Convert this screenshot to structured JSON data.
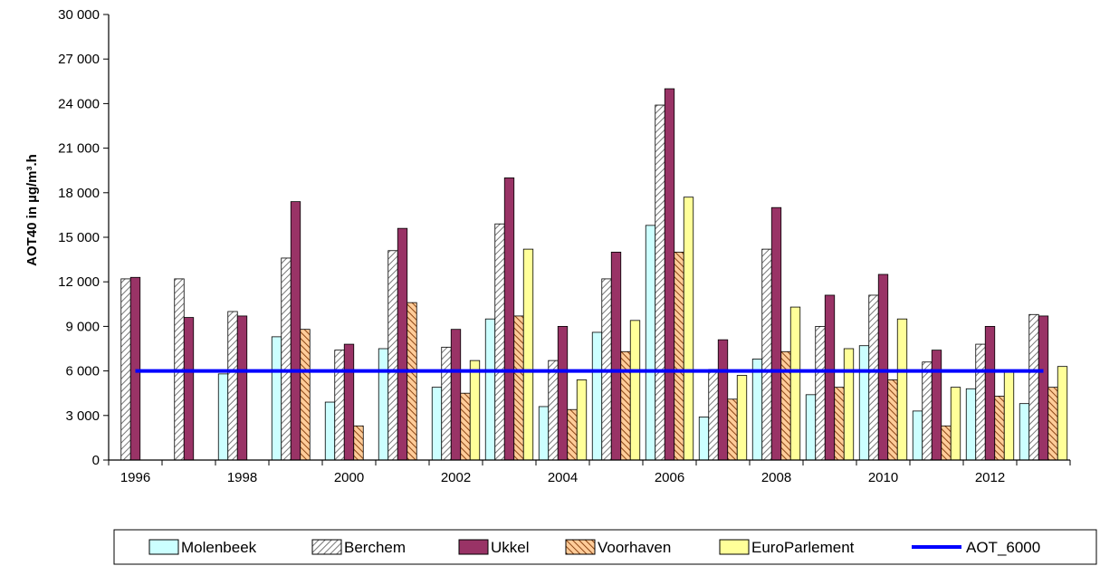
{
  "chart_data": {
    "type": "bar",
    "title": "",
    "xlabel": "",
    "ylabel": "AOT40 in µg/m³.h",
    "ylim": [
      0,
      30000
    ],
    "yticks": [
      0,
      3000,
      6000,
      9000,
      12000,
      15000,
      18000,
      21000,
      24000,
      27000,
      30000
    ],
    "ytick_labels": [
      "0",
      "3 000",
      "6 000",
      "9 000",
      "12 000",
      "15 000",
      "18 000",
      "21 000",
      "24 000",
      "27 000",
      "30 000"
    ],
    "categories": [
      "1996",
      "1997",
      "1998",
      "1999",
      "2000",
      "2001",
      "2002",
      "2003",
      "2004",
      "2005",
      "2006",
      "2007",
      "2008",
      "2009",
      "2010",
      "2011",
      "2012",
      "2013"
    ],
    "xtick_labels": [
      "1996",
      "1998",
      "2000",
      "2002",
      "2004",
      "2006",
      "2008",
      "2010",
      "2012"
    ],
    "series": [
      {
        "name": "Molenbeek",
        "color": "#ccffff",
        "pattern": "solid",
        "values": [
          null,
          null,
          5800,
          8300,
          3900,
          7500,
          4900,
          9500,
          3600,
          8600,
          15800,
          2900,
          6800,
          4400,
          7700,
          3300,
          4800,
          3800
        ]
      },
      {
        "name": "Berchem",
        "color": "#ffffff",
        "pattern": "diagonal-hatch-gray",
        "values": [
          12200,
          12200,
          10000,
          13600,
          7400,
          14100,
          7600,
          15900,
          6700,
          12200,
          23900,
          6100,
          14200,
          9000,
          11100,
          6600,
          7800,
          9800
        ]
      },
      {
        "name": "Ukkel",
        "color": "#993366",
        "pattern": "solid",
        "values": [
          12300,
          9600,
          9700,
          17400,
          7800,
          15600,
          8800,
          19000,
          9000,
          14000,
          25000,
          8100,
          17000,
          11100,
          12500,
          7400,
          9000,
          9700
        ]
      },
      {
        "name": "Voorhaven",
        "color": "#ffcc99",
        "pattern": "diagonal-hatch-brown",
        "values": [
          null,
          null,
          null,
          8800,
          2300,
          10600,
          4500,
          9700,
          3400,
          7300,
          14000,
          4100,
          7300,
          4900,
          5400,
          2300,
          4300,
          4900
        ]
      },
      {
        "name": "EuroParlement",
        "color": "#ffff99",
        "pattern": "solid",
        "values": [
          null,
          null,
          null,
          null,
          null,
          null,
          6700,
          14200,
          5400,
          9400,
          17700,
          5700,
          10300,
          7500,
          9500,
          4900,
          6000,
          6300
        ]
      }
    ],
    "reference_line": {
      "name": "AOT_6000",
      "value": 6000,
      "color": "#0000ff"
    },
    "grid": false,
    "legend_position": "bottom"
  }
}
